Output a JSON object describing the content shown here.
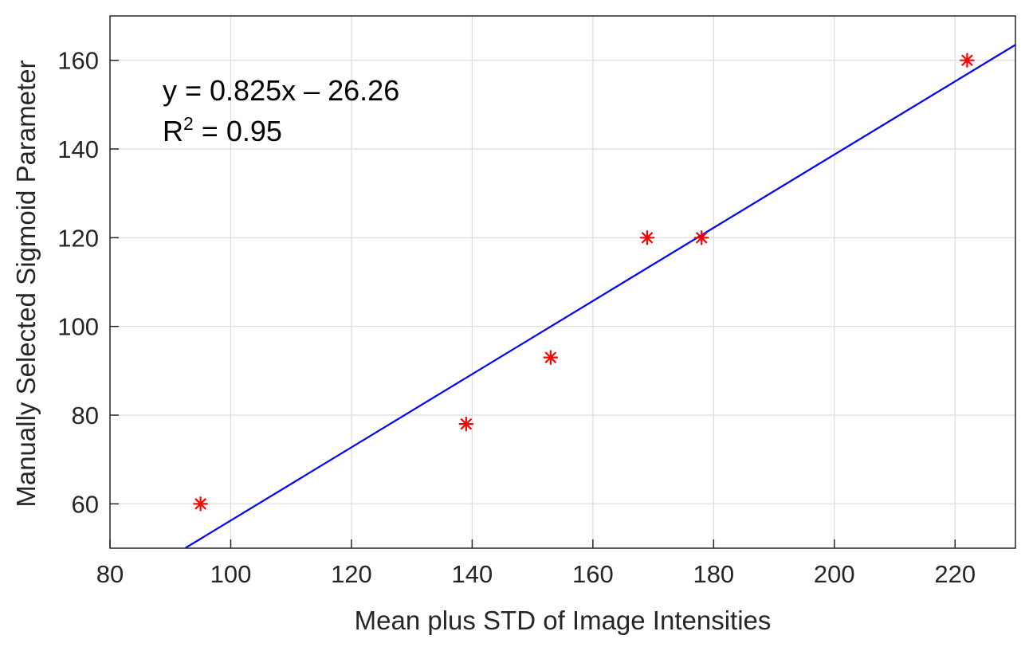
{
  "chart_data": {
    "type": "scatter",
    "title": "",
    "xlabel": "Mean plus STD of Image Intensities",
    "ylabel": "Manually Selected Sigmoid Parameter",
    "xlim": [
      80,
      230
    ],
    "ylim": [
      50,
      170
    ],
    "x_ticks": [
      80,
      100,
      120,
      140,
      160,
      180,
      200,
      220
    ],
    "y_ticks": [
      60,
      80,
      100,
      120,
      140,
      160
    ],
    "grid": true,
    "series": [
      {
        "type": "scatter",
        "marker": "asterisk",
        "color": "#ff0000",
        "x": [
          95,
          139,
          153,
          169,
          178,
          222
        ],
        "y": [
          60,
          78,
          93,
          120,
          120,
          160
        ]
      }
    ],
    "fit_line": {
      "type": "line",
      "color": "#0000ff",
      "slope": 0.825,
      "intercept": -26.26,
      "x_range": [
        92.5,
        230
      ]
    },
    "annotations": {
      "equation": "y = 0.825x – 26.26",
      "r2_prefix": "R",
      "r2_sup": "2",
      "r2_suffix": " = 0.95"
    }
  }
}
